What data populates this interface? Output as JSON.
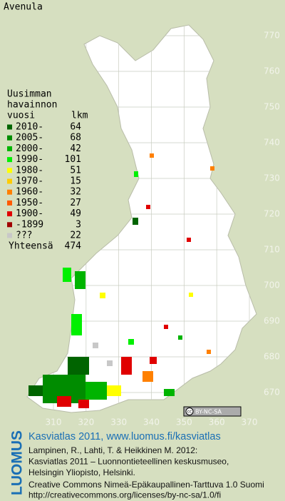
{
  "title": "Avenula",
  "legend": {
    "heading": [
      "Uusimman",
      "havainnon",
      "vuosi"
    ],
    "count_header": "lkm",
    "rows": [
      {
        "label": "2010-",
        "count": 64,
        "color": "#006400"
      },
      {
        "label": "2005-",
        "count": 68,
        "color": "#008c00"
      },
      {
        "label": "2000-",
        "count": 42,
        "color": "#00b400"
      },
      {
        "label": "1990-",
        "count": 101,
        "color": "#00f000"
      },
      {
        "label": "1980-",
        "count": 51,
        "color": "#ffff00"
      },
      {
        "label": "1970-",
        "count": 15,
        "color": "#ffcc00"
      },
      {
        "label": "1960-",
        "count": 32,
        "color": "#ff8000"
      },
      {
        "label": "1950-",
        "count": 27,
        "color": "#ff5a00"
      },
      {
        "label": "1900-",
        "count": 49,
        "color": "#e00000"
      },
      {
        "label": "-1899",
        "count": 3,
        "color": "#a00000"
      },
      {
        "label": "???",
        "count": 22,
        "color": "#c8c8c8"
      }
    ],
    "total_label": "Yhteensä",
    "total": 474
  },
  "axes": {
    "xticks": [
      310,
      320,
      330,
      340,
      350,
      360,
      370
    ],
    "yticks": [
      670,
      680,
      690,
      700,
      710,
      720,
      730,
      740,
      750,
      760,
      770
    ]
  },
  "license_badge": {
    "cc": "cc",
    "text": "BY-NC-SA"
  },
  "footer": {
    "logo": "LUOMUS",
    "title": "Kasviatlas 2011, www.luomus.fi/kasviatlas",
    "citation": [
      "Lampinen, R., Lahti, T. & Heikkinen M. 2012:",
      "Kasviatlas 2011 – Luonnontieteellinen keskusmuseo,",
      "Helsingin Yliopisto, Helsinki."
    ],
    "license": [
      "Creative Commons Nimeä-Epäkaupallinen-Tarttuva 1.0 Suomi",
      "http://creativecommons.org/licenses/by-nc-sa/1.0/fi"
    ]
  }
}
